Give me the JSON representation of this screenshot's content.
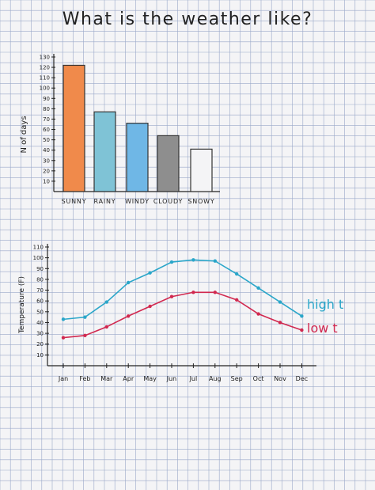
{
  "title": "What is the weather like?",
  "chart_data": [
    {
      "type": "bar",
      "categories": [
        "SUNNY",
        "RAINY",
        "WINDY",
        "CLOUDY",
        "SNOWY"
      ],
      "values": [
        122,
        77,
        66,
        54,
        41
      ],
      "colors": [
        "#f08a4b",
        "#7fc3d6",
        "#6fb7e6",
        "#8e8e8e",
        "#f4f4f6"
      ],
      "ylabel": "N of days",
      "ylim": [
        0,
        130
      ],
      "yticks": [
        10,
        20,
        30,
        40,
        50,
        60,
        70,
        80,
        90,
        100,
        110,
        120,
        130
      ]
    },
    {
      "type": "line",
      "categories": [
        "Jan",
        "Feb",
        "Mar",
        "Apr",
        "May",
        "Jun",
        "Jul",
        "Aug",
        "Sep",
        "Oct",
        "Nov",
        "Dec"
      ],
      "ylabel": "Temperature (F)",
      "ylim": [
        0,
        110
      ],
      "yticks": [
        10,
        20,
        30,
        40,
        50,
        60,
        70,
        80,
        90,
        100,
        110
      ],
      "series": [
        {
          "name": "high t",
          "color": "#2aa6c9",
          "values": [
            43,
            45,
            59,
            77,
            86,
            96,
            98,
            97,
            85,
            72,
            59,
            46
          ]
        },
        {
          "name": "low t",
          "color": "#d1284f",
          "values": [
            26,
            28,
            36,
            46,
            55,
            64,
            68,
            68,
            61,
            48,
            40,
            33
          ]
        }
      ]
    }
  ]
}
